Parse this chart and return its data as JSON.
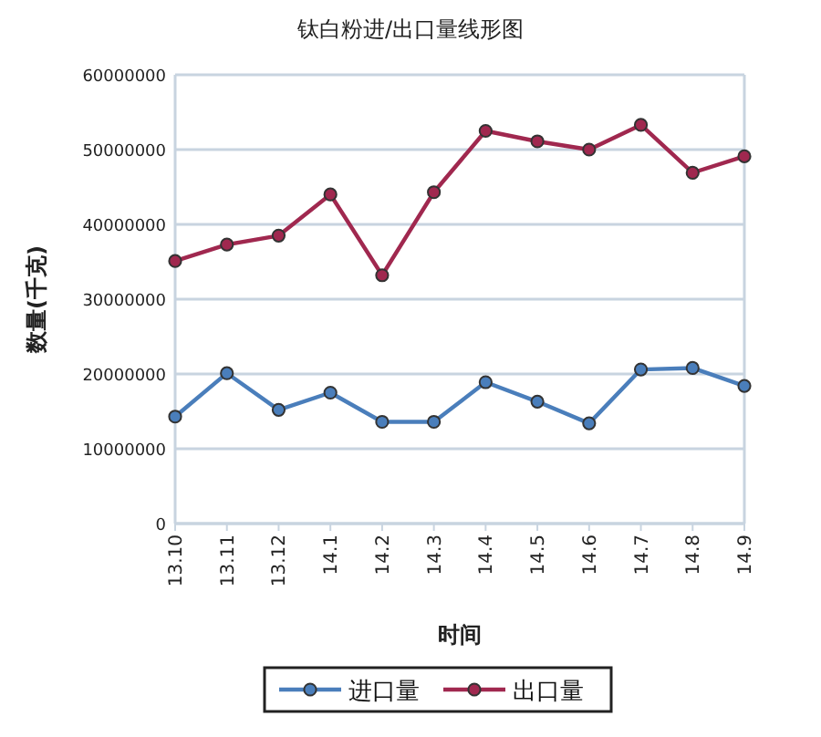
{
  "chart_data": {
    "type": "line",
    "title": "钛白粉进/出口量线形图",
    "xlabel": "时间",
    "ylabel": "数量(千克)",
    "categories": [
      "13.10",
      "13.11",
      "13.12",
      "14.1",
      "14.2",
      "14.3",
      "14.4",
      "14.5",
      "14.6",
      "14.7",
      "14.8",
      "14.9"
    ],
    "series": [
      {
        "name": "进口量",
        "color": "#4a7ebb",
        "values": [
          14300000,
          20100000,
          15200000,
          17500000,
          13600000,
          13600000,
          18900000,
          16300000,
          13400000,
          20600000,
          20800000,
          18400000
        ]
      },
      {
        "name": "出口量",
        "color": "#a0284f",
        "values": [
          35100000,
          37300000,
          38500000,
          44000000,
          33200000,
          44300000,
          52500000,
          51100000,
          50000000,
          53300000,
          46900000,
          49100000
        ]
      }
    ],
    "ylim": [
      0,
      60000000
    ],
    "yticks": [
      0,
      10000000,
      20000000,
      30000000,
      40000000,
      50000000,
      60000000
    ],
    "grid": "y",
    "legend": "bottom",
    "marker": "circle",
    "line_style": "solid"
  }
}
